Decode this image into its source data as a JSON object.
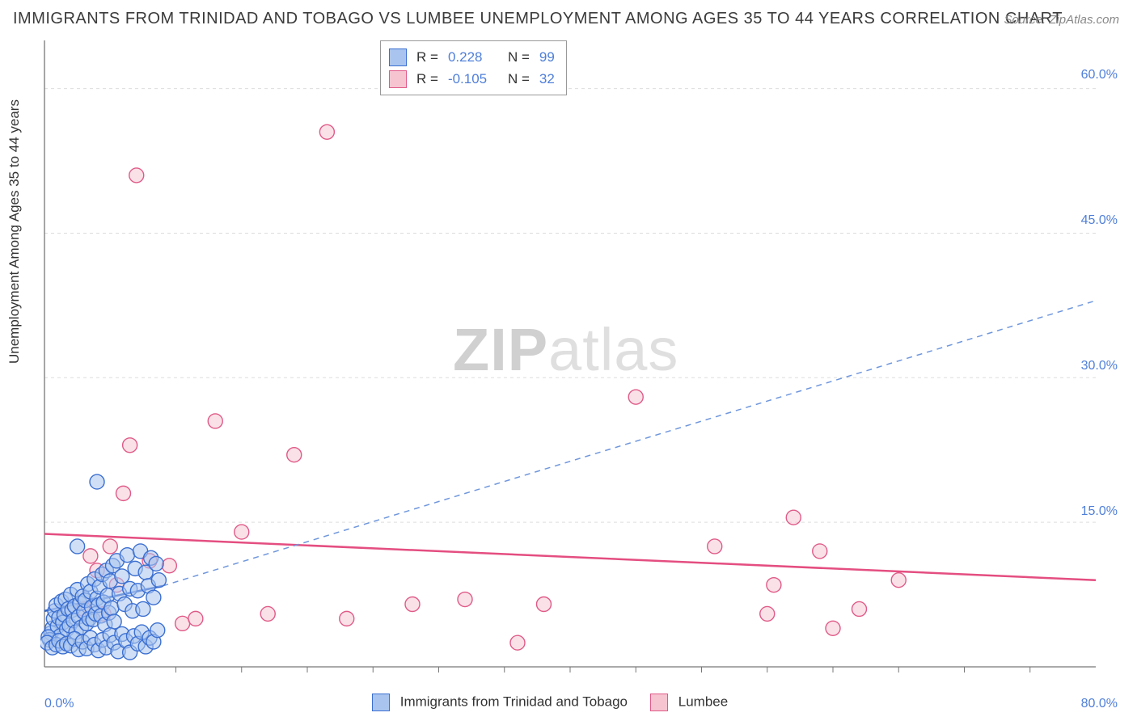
{
  "title": "IMMIGRANTS FROM TRINIDAD AND TOBAGO VS LUMBEE UNEMPLOYMENT AMONG AGES 35 TO 44 YEARS CORRELATION CHART",
  "source": "Source: ZipAtlas.com",
  "yaxis_label": "Unemployment Among Ages 35 to 44 years",
  "watermark": {
    "a": "ZIP",
    "b": "atlas"
  },
  "chart": {
    "type": "scatter",
    "background_color": "#ffffff",
    "grid_color": "#dddddd",
    "axis_color": "#777777",
    "xlim": [
      0,
      80
    ],
    "ylim": [
      0,
      65
    ],
    "x_ticks_labeled": [
      0,
      80
    ],
    "x_tick_labels": [
      "0.0%",
      "80.0%"
    ],
    "x_minor_ticks": [
      10,
      15,
      20,
      25,
      30,
      35,
      40,
      45,
      50,
      55,
      60,
      65,
      70,
      75
    ],
    "y_ticks": [
      15,
      30,
      45,
      60
    ],
    "y_tick_labels": [
      "15.0%",
      "30.0%",
      "45.0%",
      "60.0%"
    ],
    "label_color": "#4f7fd9",
    "label_fontsize": 16,
    "marker_radius": 9,
    "marker_stroke_width": 1.4,
    "series": [
      {
        "name": "Immigrants from Trinidad and Tobago",
        "fill": "#a9c5ef",
        "stroke": "#3b6fd1",
        "fill_opacity": 0.55,
        "r_label": "R =",
        "r_value": "0.228",
        "n_label": "N =",
        "n_value": "99",
        "trend_solid": {
          "x1": 0,
          "y1": 5.8,
          "x2": 9,
          "y2": 8.4,
          "color": "#2f63c9",
          "width": 2.5
        },
        "trend_dashed": {
          "x1": 9,
          "y1": 8.4,
          "x2": 80,
          "y2": 38.0,
          "color": "#6f97dd",
          "width": 1.5,
          "dash": "7 6"
        },
        "points": [
          [
            0.5,
            3.5
          ],
          [
            0.6,
            4.0
          ],
          [
            0.7,
            5.0
          ],
          [
            0.8,
            5.8
          ],
          [
            0.9,
            6.4
          ],
          [
            1.0,
            4.2
          ],
          [
            1.1,
            5.1
          ],
          [
            1.2,
            3.2
          ],
          [
            1.3,
            6.8
          ],
          [
            1.4,
            4.6
          ],
          [
            1.5,
            5.4
          ],
          [
            1.6,
            7.0
          ],
          [
            1.7,
            3.9
          ],
          [
            1.8,
            6.0
          ],
          [
            1.9,
            4.3
          ],
          [
            2.0,
            7.5
          ],
          [
            2.1,
            5.9
          ],
          [
            2.2,
            4.8
          ],
          [
            2.3,
            6.3
          ],
          [
            2.4,
            3.6
          ],
          [
            2.5,
            8.0
          ],
          [
            2.6,
            5.2
          ],
          [
            2.7,
            6.6
          ],
          [
            2.8,
            4.1
          ],
          [
            2.9,
            7.3
          ],
          [
            3.0,
            5.7
          ],
          [
            3.1,
            6.9
          ],
          [
            3.2,
            4.5
          ],
          [
            3.3,
            8.6
          ],
          [
            3.4,
            5.0
          ],
          [
            3.5,
            7.8
          ],
          [
            3.6,
            6.2
          ],
          [
            3.7,
            4.9
          ],
          [
            3.8,
            9.1
          ],
          [
            3.9,
            5.5
          ],
          [
            4.0,
            7.1
          ],
          [
            4.1,
            6.4
          ],
          [
            4.2,
            8.3
          ],
          [
            4.3,
            5.3
          ],
          [
            4.4,
            9.6
          ],
          [
            4.5,
            6.7
          ],
          [
            4.6,
            4.4
          ],
          [
            4.7,
            10.0
          ],
          [
            4.8,
            7.4
          ],
          [
            4.9,
            5.6
          ],
          [
            5.0,
            8.9
          ],
          [
            5.1,
            6.1
          ],
          [
            5.2,
            10.5
          ],
          [
            5.3,
            4.7
          ],
          [
            5.5,
            11.0
          ],
          [
            5.7,
            7.6
          ],
          [
            5.9,
            9.4
          ],
          [
            6.1,
            6.5
          ],
          [
            6.3,
            11.6
          ],
          [
            6.5,
            8.1
          ],
          [
            6.7,
            5.8
          ],
          [
            6.9,
            10.2
          ],
          [
            7.1,
            7.9
          ],
          [
            7.3,
            12.0
          ],
          [
            7.5,
            6.0
          ],
          [
            7.7,
            9.8
          ],
          [
            7.9,
            8.4
          ],
          [
            8.1,
            11.3
          ],
          [
            8.3,
            7.2
          ],
          [
            8.5,
            10.7
          ],
          [
            8.7,
            9.0
          ],
          [
            0.4,
            2.8
          ],
          [
            0.3,
            3.1
          ],
          [
            0.2,
            2.5
          ],
          [
            0.6,
            2.0
          ],
          [
            0.9,
            2.3
          ],
          [
            1.1,
            2.7
          ],
          [
            1.4,
            2.1
          ],
          [
            1.7,
            2.4
          ],
          [
            2.0,
            2.2
          ],
          [
            2.3,
            2.9
          ],
          [
            2.6,
            1.8
          ],
          [
            2.9,
            2.6
          ],
          [
            3.2,
            1.9
          ],
          [
            3.5,
            3.0
          ],
          [
            3.8,
            2.3
          ],
          [
            4.1,
            1.7
          ],
          [
            4.4,
            2.8
          ],
          [
            4.7,
            2.0
          ],
          [
            5.0,
            3.3
          ],
          [
            5.3,
            2.5
          ],
          [
            5.6,
            1.6
          ],
          [
            5.9,
            3.4
          ],
          [
            6.2,
            2.7
          ],
          [
            6.5,
            1.5
          ],
          [
            6.8,
            3.2
          ],
          [
            7.1,
            2.4
          ],
          [
            7.4,
            3.6
          ],
          [
            7.7,
            2.1
          ],
          [
            8.0,
            3.0
          ],
          [
            8.3,
            2.6
          ],
          [
            8.6,
            3.8
          ],
          [
            4.0,
            19.2
          ],
          [
            2.5,
            12.5
          ]
        ]
      },
      {
        "name": "Lumbee",
        "fill": "#f6c3d1",
        "stroke": "#e05a88",
        "fill_opacity": 0.5,
        "r_label": "R =",
        "r_value": "-0.105",
        "n_label": "N =",
        "n_value": "32",
        "trend_solid": {
          "x1": 0,
          "y1": 13.8,
          "x2": 80,
          "y2": 9.0,
          "color": "#e44e80",
          "width": 2.5
        },
        "points": [
          [
            3.5,
            11.5
          ],
          [
            4.0,
            10.0
          ],
          [
            5.0,
            12.5
          ],
          [
            5.5,
            8.5
          ],
          [
            6.0,
            18.0
          ],
          [
            6.5,
            23.0
          ],
          [
            7.0,
            51.0
          ],
          [
            8.0,
            11.0
          ],
          [
            9.5,
            10.5
          ],
          [
            10.5,
            4.5
          ],
          [
            11.5,
            5.0
          ],
          [
            13.0,
            25.5
          ],
          [
            15.0,
            14.0
          ],
          [
            17.0,
            5.5
          ],
          [
            19.0,
            22.0
          ],
          [
            21.5,
            55.5
          ],
          [
            23.0,
            5.0
          ],
          [
            28.0,
            6.5
          ],
          [
            32.0,
            7.0
          ],
          [
            36.0,
            2.5
          ],
          [
            38.0,
            6.5
          ],
          [
            45.0,
            28.0
          ],
          [
            51.0,
            12.5
          ],
          [
            55.0,
            5.5
          ],
          [
            55.5,
            8.5
          ],
          [
            57.0,
            15.5
          ],
          [
            59.0,
            12.0
          ],
          [
            60.0,
            4.0
          ],
          [
            62.0,
            6.0
          ],
          [
            65.0,
            9.0
          ],
          [
            3.0,
            6.0
          ],
          [
            4.5,
            5.5
          ]
        ]
      }
    ]
  }
}
